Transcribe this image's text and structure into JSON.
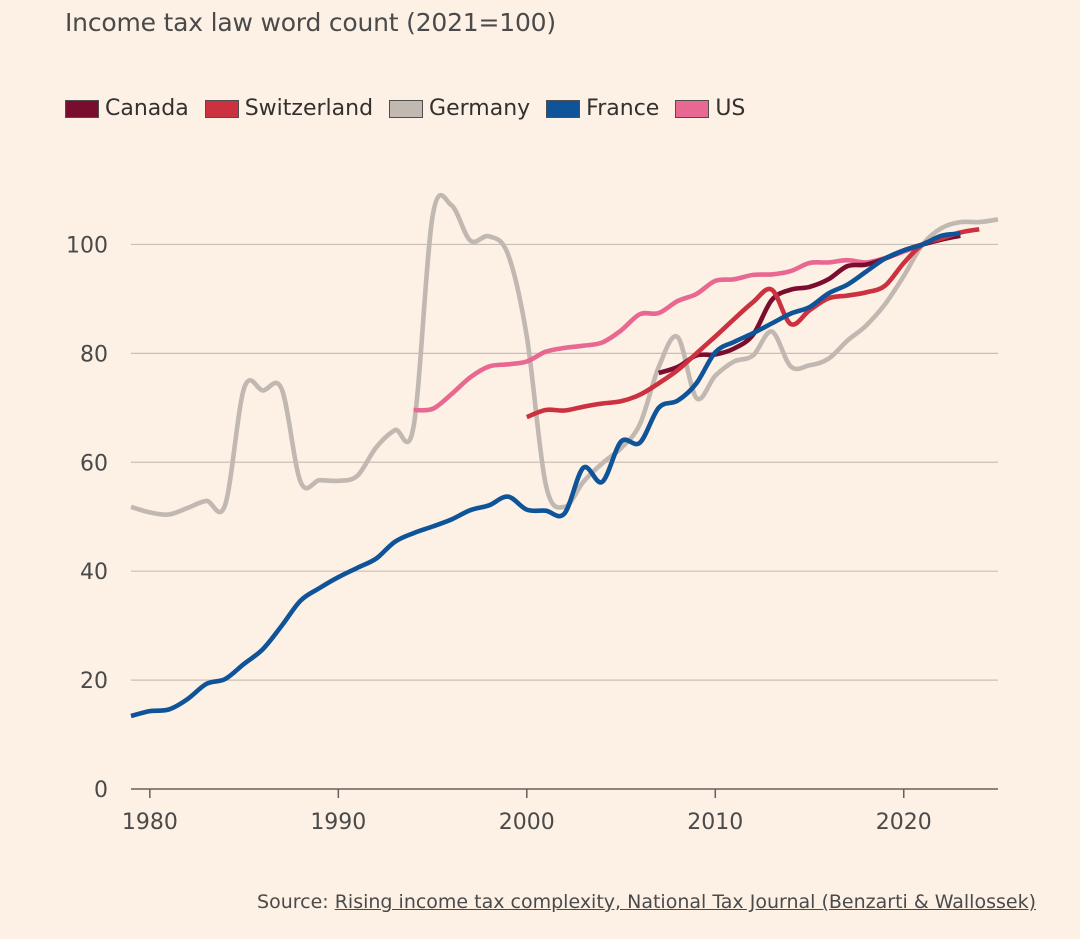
{
  "chart_data": {
    "type": "line",
    "title": "Income tax law word count (2021=100)",
    "xlim": [
      1979,
      2025
    ],
    "ylim": [
      0,
      110
    ],
    "xticks": [
      1980,
      1990,
      2000,
      2010,
      2020
    ],
    "yticks": [
      0,
      20,
      40,
      60,
      80,
      100
    ],
    "grid": "horizontal",
    "legend_position": "top-left",
    "series": [
      {
        "name": "Canada",
        "color": "#7a0c2e",
        "points": [
          [
            2007,
            76.4
          ],
          [
            2008,
            77.5
          ],
          [
            2009,
            79.6
          ],
          [
            2010,
            79.8
          ],
          [
            2011,
            80.9
          ],
          [
            2012,
            83.4
          ],
          [
            2013,
            89.8
          ],
          [
            2014,
            91.7
          ],
          [
            2015,
            92.2
          ],
          [
            2016,
            93.6
          ],
          [
            2017,
            96.0
          ],
          [
            2018,
            96.3
          ],
          [
            2019,
            97.4
          ],
          [
            2020,
            98.9
          ],
          [
            2021,
            100.0
          ],
          [
            2022,
            100.9
          ],
          [
            2023,
            101.6
          ]
        ]
      },
      {
        "name": "Switzerland",
        "color": "#cc3140",
        "points": [
          [
            2000,
            68.3
          ],
          [
            2001,
            69.6
          ],
          [
            2002,
            69.5
          ],
          [
            2003,
            70.2
          ],
          [
            2004,
            70.8
          ],
          [
            2005,
            71.2
          ],
          [
            2006,
            72.4
          ],
          [
            2007,
            74.5
          ],
          [
            2008,
            76.9
          ],
          [
            2009,
            80.0
          ],
          [
            2010,
            83.1
          ],
          [
            2011,
            86.3
          ],
          [
            2012,
            89.4
          ],
          [
            2013,
            91.7
          ],
          [
            2014,
            85.4
          ],
          [
            2015,
            87.9
          ],
          [
            2016,
            90.1
          ],
          [
            2017,
            90.6
          ],
          [
            2018,
            91.2
          ],
          [
            2019,
            92.4
          ],
          [
            2020,
            96.6
          ],
          [
            2021,
            100.0
          ],
          [
            2022,
            101.1
          ],
          [
            2023,
            102.2
          ],
          [
            2024,
            102.8
          ]
        ]
      },
      {
        "name": "Germany",
        "color": "#c1b8b2",
        "points": [
          [
            1979,
            51.8
          ],
          [
            1980,
            50.8
          ],
          [
            1981,
            50.4
          ],
          [
            1982,
            51.6
          ],
          [
            1983,
            52.9
          ],
          [
            1984,
            52.2
          ],
          [
            1985,
            73.6
          ],
          [
            1986,
            73.2
          ],
          [
            1987,
            73.4
          ],
          [
            1988,
            56.4
          ],
          [
            1989,
            56.7
          ],
          [
            1990,
            56.6
          ],
          [
            1991,
            57.5
          ],
          [
            1992,
            62.7
          ],
          [
            1993,
            65.9
          ],
          [
            1994,
            66.7
          ],
          [
            1995,
            105.2
          ],
          [
            1996,
            107.2
          ],
          [
            1997,
            100.7
          ],
          [
            1998,
            101.5
          ],
          [
            1999,
            98.2
          ],
          [
            2000,
            83.1
          ],
          [
            2001,
            56.0
          ],
          [
            2002,
            51.8
          ],
          [
            2003,
            56.4
          ],
          [
            2004,
            59.8
          ],
          [
            2005,
            62.6
          ],
          [
            2006,
            67.0
          ],
          [
            2007,
            77.5
          ],
          [
            2008,
            83.0
          ],
          [
            2009,
            71.8
          ],
          [
            2010,
            75.9
          ],
          [
            2011,
            78.5
          ],
          [
            2012,
            79.6
          ],
          [
            2013,
            84.0
          ],
          [
            2014,
            77.6
          ],
          [
            2015,
            77.8
          ],
          [
            2016,
            79.0
          ],
          [
            2017,
            82.3
          ],
          [
            2018,
            85.1
          ],
          [
            2019,
            89.0
          ],
          [
            2020,
            94.2
          ],
          [
            2021,
            100.0
          ],
          [
            2022,
            103.0
          ],
          [
            2023,
            104.1
          ],
          [
            2024,
            104.1
          ],
          [
            2025,
            104.6
          ]
        ]
      },
      {
        "name": "France",
        "color": "#0f5499",
        "points": [
          [
            1979,
            13.4
          ],
          [
            1980,
            14.3
          ],
          [
            1981,
            14.6
          ],
          [
            1982,
            16.5
          ],
          [
            1983,
            19.3
          ],
          [
            1984,
            20.2
          ],
          [
            1985,
            23.0
          ],
          [
            1986,
            25.7
          ],
          [
            1987,
            30.0
          ],
          [
            1988,
            34.6
          ],
          [
            1989,
            36.9
          ],
          [
            1990,
            38.9
          ],
          [
            1991,
            40.6
          ],
          [
            1992,
            42.3
          ],
          [
            1993,
            45.4
          ],
          [
            1994,
            47.0
          ],
          [
            1995,
            48.2
          ],
          [
            1996,
            49.5
          ],
          [
            1997,
            51.2
          ],
          [
            1998,
            52.1
          ],
          [
            1999,
            53.7
          ],
          [
            2000,
            51.3
          ],
          [
            2001,
            51.1
          ],
          [
            2002,
            50.6
          ],
          [
            2003,
            59.0
          ],
          [
            2004,
            56.4
          ],
          [
            2005,
            63.8
          ],
          [
            2006,
            63.6
          ],
          [
            2007,
            70.0
          ],
          [
            2008,
            71.3
          ],
          [
            2009,
            74.5
          ],
          [
            2010,
            80.2
          ],
          [
            2011,
            82.1
          ],
          [
            2012,
            83.7
          ],
          [
            2013,
            85.5
          ],
          [
            2014,
            87.3
          ],
          [
            2015,
            88.5
          ],
          [
            2016,
            91.0
          ],
          [
            2017,
            92.6
          ],
          [
            2018,
            95.0
          ],
          [
            2019,
            97.4
          ],
          [
            2020,
            98.9
          ],
          [
            2021,
            100.0
          ],
          [
            2022,
            101.6
          ],
          [
            2023,
            102.0
          ]
        ]
      },
      {
        "name": "US",
        "color": "#e86891",
        "points": [
          [
            1994,
            69.6
          ],
          [
            1995,
            69.8
          ],
          [
            1996,
            72.5
          ],
          [
            1997,
            75.6
          ],
          [
            1998,
            77.6
          ],
          [
            1999,
            78.0
          ],
          [
            2000,
            78.5
          ],
          [
            2001,
            80.3
          ],
          [
            2002,
            81.0
          ],
          [
            2003,
            81.4
          ],
          [
            2004,
            82.0
          ],
          [
            2005,
            84.2
          ],
          [
            2006,
            87.2
          ],
          [
            2007,
            87.4
          ],
          [
            2008,
            89.6
          ],
          [
            2009,
            90.9
          ],
          [
            2010,
            93.3
          ],
          [
            2011,
            93.6
          ],
          [
            2012,
            94.4
          ],
          [
            2013,
            94.5
          ],
          [
            2014,
            95.1
          ],
          [
            2015,
            96.6
          ],
          [
            2016,
            96.7
          ],
          [
            2017,
            97.1
          ],
          [
            2018,
            96.7
          ],
          [
            2019,
            97.5
          ],
          [
            2020,
            98.7
          ],
          [
            2021,
            100.0
          ]
        ]
      }
    ]
  },
  "source": {
    "label": "Source: ",
    "link_text": "Rising income tax complexity, National Tax Journal (Benzarti & Wallossek)"
  }
}
